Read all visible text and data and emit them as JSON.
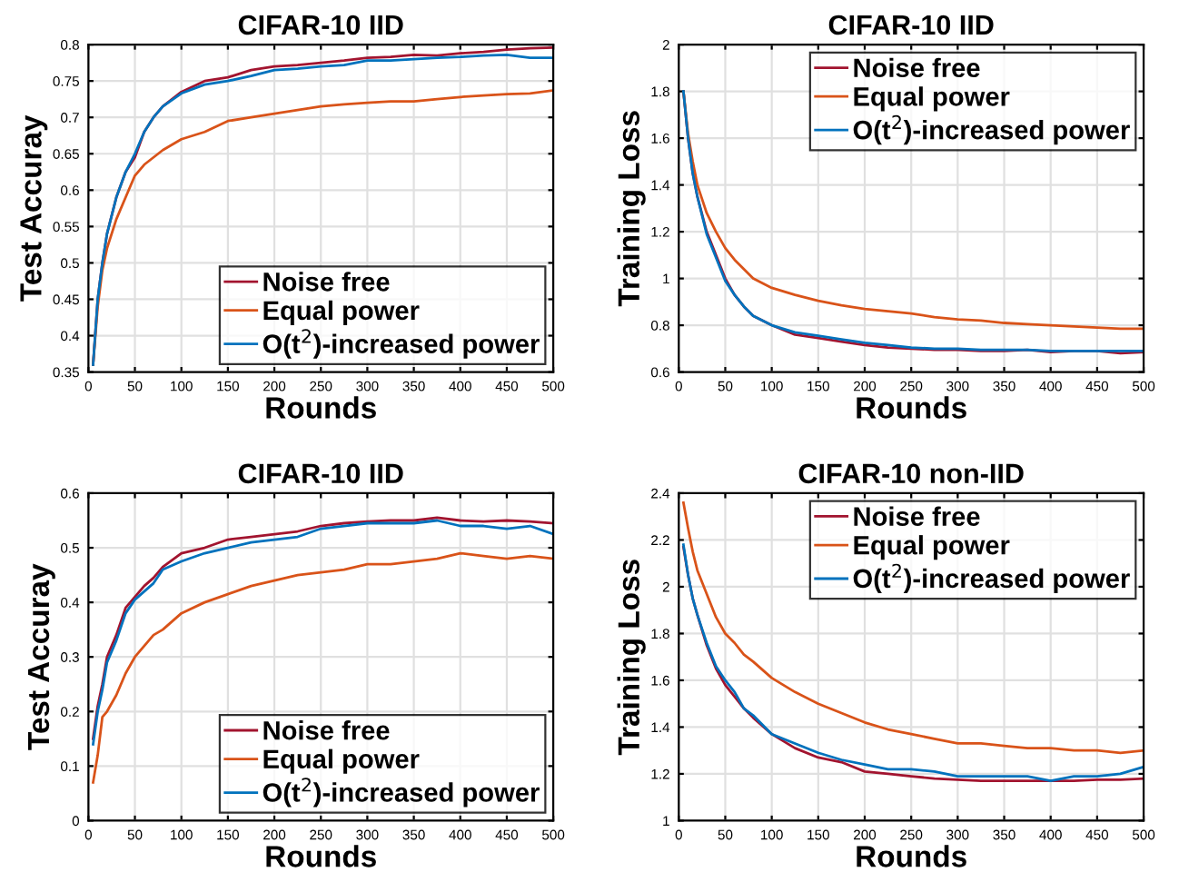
{
  "chart_data": [
    {
      "type": "line",
      "title": "CIFAR-10 IID",
      "xlabel": "Rounds",
      "ylabel": "Test Accuray",
      "x": [
        5,
        10,
        15,
        20,
        30,
        40,
        50,
        60,
        70,
        80,
        100,
        125,
        150,
        175,
        200,
        225,
        250,
        275,
        300,
        325,
        350,
        375,
        400,
        425,
        450,
        475,
        500
      ],
      "xlim": [
        0,
        500
      ],
      "xticks": [
        0,
        50,
        100,
        150,
        200,
        250,
        300,
        350,
        400,
        450,
        500
      ],
      "ylim": [
        0.35,
        0.8
      ],
      "yticks": [
        0.35,
        0.4,
        0.45,
        0.5,
        0.55,
        0.6,
        0.65,
        0.7,
        0.75,
        0.8
      ],
      "grid": true,
      "legend": "bottom right",
      "series": [
        {
          "name": "Noise free",
          "color": "#a2142f",
          "values": [
            0.36,
            0.45,
            0.5,
            0.54,
            0.59,
            0.625,
            0.645,
            0.68,
            0.7,
            0.715,
            0.735,
            0.75,
            0.755,
            0.765,
            0.77,
            0.772,
            0.775,
            0.778,
            0.782,
            0.783,
            0.786,
            0.785,
            0.788,
            0.79,
            0.793,
            0.795,
            0.796
          ]
        },
        {
          "name": "Equal power",
          "color": "#d95319",
          "values": [
            0.36,
            0.44,
            0.49,
            0.52,
            0.56,
            0.59,
            0.62,
            0.635,
            0.645,
            0.655,
            0.67,
            0.68,
            0.695,
            0.7,
            0.705,
            0.71,
            0.715,
            0.718,
            0.72,
            0.722,
            0.722,
            0.725,
            0.728,
            0.73,
            0.732,
            0.733,
            0.737
          ]
        },
        {
          "name": "O(t$^{2}$)-increased power",
          "color": "#0072bd",
          "values": [
            0.36,
            0.45,
            0.5,
            0.54,
            0.59,
            0.625,
            0.65,
            0.68,
            0.7,
            0.715,
            0.733,
            0.745,
            0.75,
            0.757,
            0.765,
            0.767,
            0.77,
            0.772,
            0.778,
            0.778,
            0.78,
            0.782,
            0.783,
            0.785,
            0.786,
            0.782,
            0.782
          ]
        }
      ]
    },
    {
      "type": "line",
      "title": "CIFAR-10 IID",
      "xlabel": "Rounds",
      "ylabel": "Training Loss",
      "x": [
        5,
        10,
        15,
        20,
        30,
        40,
        50,
        60,
        70,
        80,
        100,
        125,
        150,
        175,
        200,
        225,
        250,
        275,
        300,
        325,
        350,
        375,
        400,
        425,
        450,
        475,
        500
      ],
      "xlim": [
        0,
        500
      ],
      "xticks": [
        0,
        50,
        100,
        150,
        200,
        250,
        300,
        350,
        400,
        450,
        500
      ],
      "ylim": [
        0.6,
        2
      ],
      "yticks": [
        0.6,
        0.8,
        1,
        1.2,
        1.4,
        1.6,
        1.8,
        2
      ],
      "grid": true,
      "legend": "top right",
      "series": [
        {
          "name": "Noise free",
          "color": "#a2142f",
          "values": [
            1.8,
            1.6,
            1.45,
            1.35,
            1.2,
            1.1,
            1.0,
            0.93,
            0.88,
            0.84,
            0.8,
            0.76,
            0.745,
            0.73,
            0.715,
            0.705,
            0.7,
            0.695,
            0.695,
            0.69,
            0.69,
            0.695,
            0.685,
            0.69,
            0.69,
            0.68,
            0.685
          ]
        },
        {
          "name": "Equal power",
          "color": "#d95319",
          "values": [
            1.8,
            1.62,
            1.5,
            1.4,
            1.28,
            1.2,
            1.13,
            1.08,
            1.04,
            1.0,
            0.96,
            0.93,
            0.905,
            0.885,
            0.87,
            0.86,
            0.85,
            0.835,
            0.825,
            0.82,
            0.81,
            0.805,
            0.8,
            0.795,
            0.79,
            0.785,
            0.785
          ]
        },
        {
          "name": "O(t$^{2}$)-increased power",
          "color": "#0072bd",
          "values": [
            1.8,
            1.6,
            1.45,
            1.35,
            1.19,
            1.09,
            0.99,
            0.93,
            0.88,
            0.84,
            0.8,
            0.77,
            0.755,
            0.74,
            0.725,
            0.715,
            0.705,
            0.7,
            0.7,
            0.695,
            0.695,
            0.695,
            0.69,
            0.69,
            0.69,
            0.69,
            0.69
          ]
        }
      ]
    },
    {
      "type": "line",
      "title": "CIFAR-10 IID",
      "xlabel": "Rounds",
      "ylabel": "Test Accuray",
      "x": [
        5,
        10,
        15,
        20,
        30,
        40,
        50,
        60,
        70,
        80,
        100,
        125,
        150,
        175,
        200,
        225,
        250,
        275,
        300,
        325,
        350,
        375,
        400,
        425,
        450,
        475,
        500
      ],
      "xlim": [
        0,
        500
      ],
      "xticks": [
        0,
        50,
        100,
        150,
        200,
        250,
        300,
        350,
        400,
        450,
        500
      ],
      "ylim": [
        0,
        0.6
      ],
      "yticks": [
        0,
        0.1,
        0.2,
        0.3,
        0.4,
        0.5,
        0.6
      ],
      "grid": true,
      "legend": "bottom right",
      "series": [
        {
          "name": "Noise free",
          "color": "#a2142f",
          "values": [
            0.15,
            0.21,
            0.25,
            0.3,
            0.34,
            0.39,
            0.41,
            0.43,
            0.445,
            0.465,
            0.49,
            0.5,
            0.515,
            0.52,
            0.525,
            0.53,
            0.54,
            0.545,
            0.548,
            0.55,
            0.55,
            0.555,
            0.55,
            0.548,
            0.55,
            0.548,
            0.545
          ]
        },
        {
          "name": "Equal power",
          "color": "#d95319",
          "values": [
            0.07,
            0.12,
            0.19,
            0.2,
            0.23,
            0.27,
            0.3,
            0.32,
            0.34,
            0.35,
            0.38,
            0.4,
            0.415,
            0.43,
            0.44,
            0.45,
            0.455,
            0.46,
            0.47,
            0.47,
            0.475,
            0.48,
            0.49,
            0.485,
            0.48,
            0.485,
            0.48
          ]
        },
        {
          "name": "O(t$^{2}$)-increased power",
          "color": "#0072bd",
          "values": [
            0.14,
            0.2,
            0.24,
            0.29,
            0.33,
            0.38,
            0.405,
            0.42,
            0.435,
            0.46,
            0.475,
            0.49,
            0.5,
            0.51,
            0.515,
            0.52,
            0.535,
            0.54,
            0.545,
            0.545,
            0.545,
            0.55,
            0.54,
            0.54,
            0.535,
            0.54,
            0.525
          ]
        }
      ]
    },
    {
      "type": "line",
      "title": "CIFAR-10 non-IID",
      "xlabel": "Rounds",
      "ylabel": "Training Loss",
      "x": [
        5,
        10,
        15,
        20,
        30,
        40,
        50,
        60,
        70,
        80,
        100,
        125,
        150,
        175,
        200,
        225,
        250,
        275,
        300,
        325,
        350,
        375,
        400,
        425,
        450,
        475,
        500
      ],
      "xlim": [
        0,
        500
      ],
      "xticks": [
        0,
        50,
        100,
        150,
        200,
        250,
        300,
        350,
        400,
        450,
        500
      ],
      "ylim": [
        1,
        2.4
      ],
      "yticks": [
        1,
        1.2,
        1.4,
        1.6,
        1.8,
        2,
        2.2,
        2.4
      ],
      "grid": true,
      "legend": "top right",
      "series": [
        {
          "name": "Noise free",
          "color": "#a2142f",
          "values": [
            2.17,
            2.05,
            1.95,
            1.88,
            1.75,
            1.65,
            1.58,
            1.53,
            1.48,
            1.44,
            1.37,
            1.31,
            1.27,
            1.25,
            1.21,
            1.2,
            1.19,
            1.18,
            1.175,
            1.17,
            1.17,
            1.17,
            1.17,
            1.17,
            1.175,
            1.175,
            1.18
          ]
        },
        {
          "name": "Equal power",
          "color": "#d95319",
          "values": [
            2.36,
            2.25,
            2.15,
            2.07,
            1.97,
            1.87,
            1.8,
            1.76,
            1.71,
            1.68,
            1.61,
            1.55,
            1.5,
            1.46,
            1.42,
            1.39,
            1.37,
            1.35,
            1.33,
            1.33,
            1.32,
            1.31,
            1.31,
            1.3,
            1.3,
            1.29,
            1.3
          ]
        },
        {
          "name": "O(t$^{2}$)-increased power",
          "color": "#0072bd",
          "values": [
            2.18,
            2.05,
            1.95,
            1.88,
            1.76,
            1.66,
            1.6,
            1.55,
            1.48,
            1.45,
            1.37,
            1.33,
            1.29,
            1.26,
            1.24,
            1.22,
            1.22,
            1.21,
            1.19,
            1.19,
            1.19,
            1.19,
            1.17,
            1.19,
            1.19,
            1.2,
            1.23
          ]
        }
      ]
    }
  ]
}
